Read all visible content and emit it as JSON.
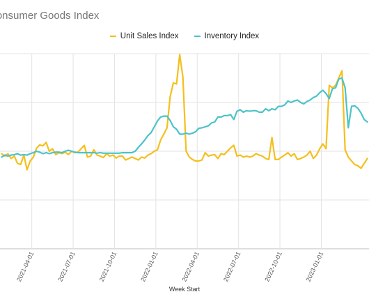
{
  "chart_data": {
    "type": "line",
    "title": "Consumer Goods Index",
    "xlabel": "Week Start",
    "ylabel": "",
    "x_tick_labels": [
      "2021-04-01",
      "2021-07-01",
      "2021-10-01",
      "2022-01-01",
      "2022-04-01",
      "2022-07-01",
      "2022-10-01",
      "2023-01-01"
    ],
    "grid": true,
    "legend_position": "top",
    "series": [
      {
        "name": "Unit Sales Index",
        "color": "#F5BF1C",
        "points": [
          [
            -3.5,
            2.95
          ],
          [
            -2.5,
            2.9
          ],
          [
            -1.5,
            2.95
          ],
          [
            -0.5,
            2.85
          ],
          [
            0.5,
            2.9
          ],
          [
            1.5,
            2.75
          ],
          [
            2.5,
            2.73
          ],
          [
            3.5,
            2.92
          ],
          [
            4.5,
            2.62
          ],
          [
            5.5,
            2.8
          ],
          [
            6.5,
            2.88
          ],
          [
            7.5,
            3.06
          ],
          [
            8.5,
            3.13
          ],
          [
            9.5,
            3.11
          ],
          [
            10.5,
            3.18
          ],
          [
            11.5,
            3.0
          ],
          [
            12.5,
            3.05
          ],
          [
            13.5,
            2.93
          ],
          [
            14.5,
            2.97
          ],
          [
            15.5,
            2.95
          ],
          [
            16.5,
            2.98
          ],
          [
            17.5,
            2.93
          ],
          [
            18.5,
            3.0
          ],
          [
            19.5,
            2.97
          ],
          [
            20.5,
            2.98
          ],
          [
            21.5,
            3.05
          ],
          [
            22.5,
            3.12
          ],
          [
            23.5,
            2.88
          ],
          [
            24.5,
            2.9
          ],
          [
            25.5,
            3.03
          ],
          [
            26.5,
            2.92
          ],
          [
            27.5,
            2.9
          ],
          [
            28.5,
            2.87
          ],
          [
            29.5,
            2.95
          ],
          [
            30.5,
            2.9
          ],
          [
            31.5,
            2.92
          ],
          [
            32.5,
            2.86
          ],
          [
            33.5,
            2.9
          ],
          [
            34.5,
            2.9
          ],
          [
            35.5,
            2.82
          ],
          [
            36.5,
            2.85
          ],
          [
            37.5,
            2.88
          ],
          [
            38.5,
            2.85
          ],
          [
            39.5,
            2.82
          ],
          [
            40.5,
            2.88
          ],
          [
            41.5,
            2.86
          ],
          [
            42.5,
            2.92
          ],
          [
            43.5,
            2.95
          ],
          [
            44.5,
            3.0
          ],
          [
            45.5,
            3.03
          ],
          [
            46.5,
            3.23
          ],
          [
            47.5,
            3.35
          ],
          [
            48.5,
            3.48
          ],
          [
            49.5,
            4.12
          ],
          [
            50.5,
            4.4
          ],
          [
            51.5,
            4.38
          ],
          [
            52.5,
            4.98
          ],
          [
            53.5,
            4.52
          ],
          [
            54.5,
            3.0
          ],
          [
            55.5,
            2.88
          ],
          [
            56.5,
            2.83
          ],
          [
            57.5,
            2.8
          ],
          [
            58.5,
            2.8
          ],
          [
            59.5,
            2.82
          ],
          [
            60.5,
            2.97
          ],
          [
            61.5,
            2.9
          ],
          [
            62.5,
            2.92
          ],
          [
            63.5,
            2.93
          ],
          [
            64.5,
            2.85
          ],
          [
            65.5,
            2.95
          ],
          [
            66.5,
            2.93
          ],
          [
            67.5,
            3.0
          ],
          [
            68.5,
            3.07
          ],
          [
            69.5,
            3.12
          ],
          [
            70.5,
            2.9
          ],
          [
            71.5,
            2.92
          ],
          [
            72.5,
            2.88
          ],
          [
            73.5,
            2.9
          ],
          [
            74.5,
            2.88
          ],
          [
            75.5,
            2.9
          ],
          [
            76.5,
            2.95
          ],
          [
            77.5,
            2.92
          ],
          [
            78.5,
            2.9
          ],
          [
            79.5,
            2.85
          ],
          [
            80.5,
            2.83
          ],
          [
            81.5,
            3.28
          ],
          [
            82.5,
            2.83
          ],
          [
            83.5,
            2.83
          ],
          [
            84.5,
            2.88
          ],
          [
            85.5,
            2.92
          ],
          [
            86.5,
            2.97
          ],
          [
            87.5,
            2.9
          ],
          [
            88.5,
            2.95
          ],
          [
            89.5,
            2.83
          ],
          [
            90.5,
            2.85
          ],
          [
            91.5,
            2.88
          ],
          [
            92.5,
            2.92
          ],
          [
            93.5,
            3.0
          ],
          [
            94.5,
            2.85
          ],
          [
            95.5,
            2.92
          ],
          [
            96.5,
            3.05
          ],
          [
            97.5,
            3.15
          ],
          [
            98.5,
            3.05
          ],
          [
            99.5,
            4.35
          ],
          [
            100.5,
            4.3
          ],
          [
            101.5,
            4.35
          ],
          [
            102.5,
            4.5
          ],
          [
            103.5,
            4.65
          ],
          [
            104.5,
            3.03
          ],
          [
            105.5,
            2.88
          ],
          [
            106.5,
            2.8
          ],
          [
            107.5,
            2.73
          ],
          [
            108.5,
            2.7
          ],
          [
            109.5,
            2.65
          ],
          [
            110.5,
            2.75
          ],
          [
            111.5,
            2.85
          ]
        ]
      },
      {
        "name": "Inventory Index",
        "color": "#4CC3C8",
        "points": [
          [
            -3.5,
            2.88
          ],
          [
            -2.5,
            2.92
          ],
          [
            -1.5,
            2.9
          ],
          [
            -0.5,
            2.92
          ],
          [
            0.5,
            2.93
          ],
          [
            1.5,
            2.95
          ],
          [
            2.5,
            2.92
          ],
          [
            3.5,
            2.93
          ],
          [
            4.5,
            2.92
          ],
          [
            5.5,
            2.95
          ],
          [
            6.5,
            2.97
          ],
          [
            7.5,
            3.0
          ],
          [
            8.5,
            2.98
          ],
          [
            9.5,
            2.95
          ],
          [
            10.5,
            2.97
          ],
          [
            11.5,
            2.95
          ],
          [
            12.5,
            2.97
          ],
          [
            13.5,
            2.98
          ],
          [
            14.5,
            2.98
          ],
          [
            15.5,
            2.97
          ],
          [
            16.5,
            3.0
          ],
          [
            17.5,
            3.02
          ],
          [
            18.5,
            3.0
          ],
          [
            19.5,
            2.98
          ],
          [
            20.5,
            2.97
          ],
          [
            21.5,
            2.97
          ],
          [
            22.5,
            2.97
          ],
          [
            23.5,
            2.97
          ],
          [
            24.5,
            2.97
          ],
          [
            25.5,
            2.97
          ],
          [
            26.5,
            2.96
          ],
          [
            27.5,
            2.97
          ],
          [
            28.5,
            2.96
          ],
          [
            29.5,
            2.96
          ],
          [
            30.5,
            2.96
          ],
          [
            31.5,
            2.96
          ],
          [
            32.5,
            2.96
          ],
          [
            33.5,
            2.96
          ],
          [
            34.5,
            2.97
          ],
          [
            35.5,
            2.97
          ],
          [
            36.5,
            2.97
          ],
          [
            37.5,
            2.97
          ],
          [
            38.5,
            3.0
          ],
          [
            39.5,
            3.08
          ],
          [
            40.5,
            3.15
          ],
          [
            41.5,
            3.23
          ],
          [
            42.5,
            3.32
          ],
          [
            43.5,
            3.38
          ],
          [
            44.5,
            3.5
          ],
          [
            45.5,
            3.62
          ],
          [
            46.5,
            3.7
          ],
          [
            47.5,
            3.72
          ],
          [
            48.5,
            3.72
          ],
          [
            49.5,
            3.63
          ],
          [
            50.5,
            3.5
          ],
          [
            51.5,
            3.45
          ],
          [
            52.5,
            3.35
          ],
          [
            53.5,
            3.35
          ],
          [
            54.5,
            3.37
          ],
          [
            55.5,
            3.35
          ],
          [
            56.5,
            3.37
          ],
          [
            57.5,
            3.4
          ],
          [
            58.5,
            3.47
          ],
          [
            59.5,
            3.48
          ],
          [
            60.5,
            3.5
          ],
          [
            61.5,
            3.52
          ],
          [
            62.5,
            3.58
          ],
          [
            63.5,
            3.6
          ],
          [
            64.5,
            3.7
          ],
          [
            65.5,
            3.7
          ],
          [
            66.5,
            3.73
          ],
          [
            67.5,
            3.73
          ],
          [
            68.5,
            3.75
          ],
          [
            69.5,
            3.65
          ],
          [
            70.5,
            3.82
          ],
          [
            71.5,
            3.85
          ],
          [
            72.5,
            3.8
          ],
          [
            73.5,
            3.83
          ],
          [
            74.5,
            3.82
          ],
          [
            75.5,
            3.83
          ],
          [
            76.5,
            3.83
          ],
          [
            77.5,
            3.8
          ],
          [
            78.5,
            3.8
          ],
          [
            79.5,
            3.87
          ],
          [
            80.5,
            3.83
          ],
          [
            81.5,
            3.87
          ],
          [
            82.5,
            3.85
          ],
          [
            83.5,
            3.92
          ],
          [
            84.5,
            3.92
          ],
          [
            85.5,
            3.95
          ],
          [
            86.5,
            4.03
          ],
          [
            87.5,
            4.0
          ],
          [
            88.5,
            4.03
          ],
          [
            89.5,
            4.05
          ],
          [
            90.5,
            4.0
          ],
          [
            91.5,
            3.97
          ],
          [
            92.5,
            4.02
          ],
          [
            93.5,
            4.05
          ],
          [
            94.5,
            4.1
          ],
          [
            95.5,
            4.13
          ],
          [
            96.5,
            4.2
          ],
          [
            97.5,
            4.25
          ],
          [
            98.5,
            4.18
          ],
          [
            99.5,
            4.08
          ],
          [
            100.5,
            4.28
          ],
          [
            101.5,
            4.3
          ],
          [
            102.5,
            4.48
          ],
          [
            103.5,
            4.5
          ],
          [
            104.5,
            4.3
          ],
          [
            105.5,
            3.48
          ],
          [
            106.5,
            3.92
          ],
          [
            107.5,
            3.93
          ],
          [
            108.5,
            3.88
          ],
          [
            109.5,
            3.78
          ],
          [
            110.5,
            3.65
          ],
          [
            111.5,
            3.6
          ]
        ]
      }
    ]
  }
}
